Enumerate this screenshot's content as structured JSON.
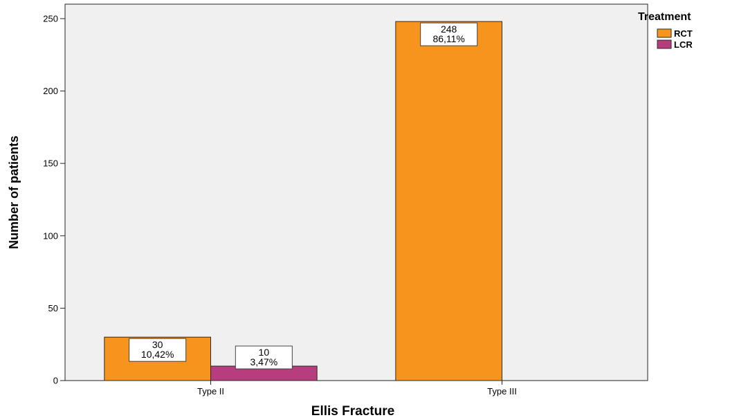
{
  "chart_data": {
    "type": "bar",
    "xlabel": "Ellis Fracture",
    "ylabel": "Number of patients",
    "categories": [
      "Type II",
      "Type III"
    ],
    "ylim": [
      0,
      260
    ],
    "yticks": [
      0,
      50,
      100,
      150,
      200,
      250
    ],
    "grid": false,
    "legend": {
      "title": "Treatment",
      "placement": "right",
      "entries": [
        "RCT",
        "LCR"
      ]
    },
    "series": [
      {
        "name": "RCT",
        "color": "#F7941D",
        "values": [
          30,
          248
        ],
        "labels": [
          {
            "count": "30",
            "percent": "10,42%"
          },
          {
            "count": "248",
            "percent": "86,11%"
          }
        ]
      },
      {
        "name": "LCR",
        "color": "#B83D7E",
        "values": [
          10,
          null
        ],
        "labels": [
          {
            "count": "10",
            "percent": "3,47%"
          },
          null
        ]
      }
    ],
    "plot_background": "#F0F0F0"
  }
}
